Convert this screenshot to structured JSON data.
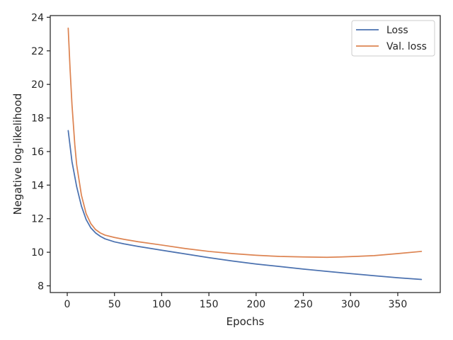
{
  "chart_data": {
    "type": "line",
    "title": "",
    "xlabel": "Epochs",
    "ylabel": "Negative log-likelihood",
    "xlim": [
      -18,
      395
    ],
    "ylim": [
      7.6,
      24.1
    ],
    "xticks": [
      0,
      50,
      100,
      150,
      200,
      250,
      300,
      350
    ],
    "yticks": [
      8,
      10,
      12,
      14,
      16,
      18,
      20,
      22,
      24
    ],
    "grid": false,
    "legend_position": "top-right",
    "colors": {
      "Loss": "#4c72b0",
      "Val. loss": "#dd8452"
    },
    "series": [
      {
        "name": "Loss",
        "x": [
          1,
          5,
          10,
          15,
          20,
          25,
          30,
          35,
          40,
          50,
          60,
          75,
          100,
          125,
          150,
          175,
          200,
          225,
          250,
          275,
          300,
          325,
          350,
          375
        ],
        "y": [
          17.25,
          15.4,
          13.9,
          12.75,
          11.95,
          11.45,
          11.15,
          10.95,
          10.8,
          10.62,
          10.5,
          10.35,
          10.12,
          9.9,
          9.68,
          9.48,
          9.3,
          9.15,
          9.0,
          8.86,
          8.73,
          8.6,
          8.48,
          8.38
        ]
      },
      {
        "name": "Val. loss",
        "x": [
          1,
          3,
          5,
          8,
          10,
          15,
          20,
          25,
          30,
          35,
          40,
          50,
          60,
          75,
          100,
          125,
          150,
          175,
          200,
          225,
          250,
          275,
          290,
          300,
          325,
          350,
          375
        ],
        "y": [
          23.35,
          20.9,
          18.8,
          16.4,
          15.2,
          13.4,
          12.3,
          11.7,
          11.35,
          11.15,
          11.02,
          10.88,
          10.77,
          10.63,
          10.43,
          10.22,
          10.05,
          9.92,
          9.82,
          9.75,
          9.72,
          9.7,
          9.72,
          9.74,
          9.8,
          9.92,
          10.05
        ]
      }
    ]
  }
}
